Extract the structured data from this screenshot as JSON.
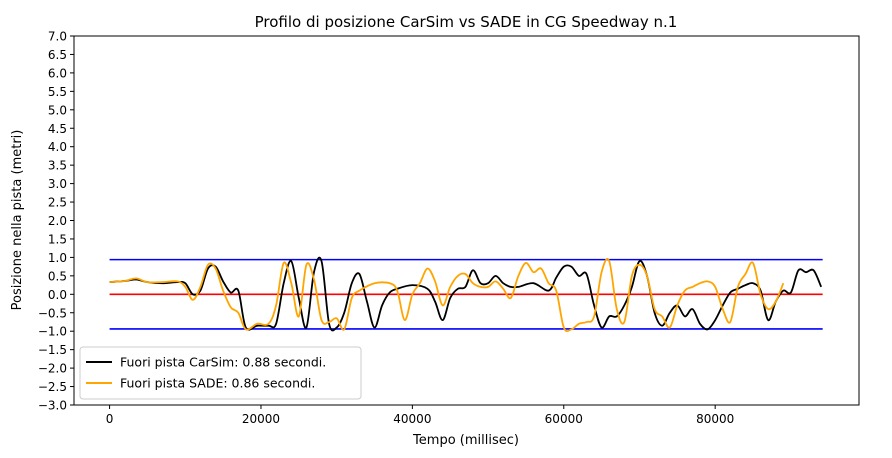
{
  "chart_data": {
    "type": "line",
    "title": "Profilo di posizione CarSim vs SADE in CG Speedway n.1",
    "xlabel": "Tempo (millisec)",
    "ylabel": "Posizione nella pista (metri)",
    "xlim": [
      -4700,
      99000
    ],
    "ylim": [
      -3.0,
      7.0
    ],
    "xticks": [
      0,
      20000,
      40000,
      60000,
      80000
    ],
    "xtick_labels": [
      "0",
      "20000",
      "40000",
      "60000",
      "80000"
    ],
    "yticks": [
      -3.0,
      -2.5,
      -2.0,
      -1.5,
      -1.0,
      -0.5,
      0.0,
      0.5,
      1.0,
      1.5,
      2.0,
      2.5,
      3.0,
      3.5,
      4.0,
      4.5,
      5.0,
      5.5,
      6.0,
      6.5,
      7.0
    ],
    "ytick_labels": [
      "−3.0",
      "−2.5",
      "−2.0",
      "−1.5",
      "−1.0",
      "−0.5",
      "0.0",
      "0.5",
      "1.0",
      "1.5",
      "2.0",
      "2.5",
      "3.0",
      "3.5",
      "4.0",
      "4.5",
      "5.0",
      "5.5",
      "6.0",
      "6.5",
      "7.0"
    ],
    "legend_position": "bottom-left",
    "reference_lines": [
      {
        "y": 0.94,
        "x": [
          0,
          94200
        ],
        "color": "#0000ff"
      },
      {
        "y": 0.0,
        "x": [
          0,
          94200
        ],
        "color": "#ff0000"
      },
      {
        "y": -0.94,
        "x": [
          0,
          94200
        ],
        "color": "#0000ff"
      }
    ],
    "series": [
      {
        "name": "Fuori pista CarSim: 0.88 secondi.",
        "color": "#000000",
        "x": [
          0,
          2000,
          3500,
          5000,
          7000,
          9000,
          10000,
          11000,
          12000,
          13000,
          14000,
          15000,
          16000,
          17000,
          18000,
          19500,
          21000,
          22000,
          23000,
          24000,
          25000,
          26000,
          27000,
          28000,
          29000,
          30000,
          31000,
          32000,
          33000,
          34000,
          35000,
          36000,
          37000,
          38000,
          40000,
          42000,
          43000,
          44000,
          45000,
          46000,
          47000,
          48000,
          49000,
          50000,
          51000,
          52000,
          53000,
          54000,
          56000,
          58000,
          59000,
          60000,
          61000,
          62000,
          63000,
          64000,
          65000,
          66000,
          67000,
          68000,
          69000,
          70000,
          71000,
          72000,
          73000,
          74000,
          75000,
          76000,
          77000,
          78000,
          79000,
          80000,
          81000,
          82000,
          83000,
          84000,
          85000,
          86000,
          87000,
          88000,
          89000,
          90000,
          91000,
          92000,
          93000,
          94000
        ],
        "y": [
          0.33,
          0.36,
          0.4,
          0.33,
          0.3,
          0.33,
          0.3,
          0.0,
          0.1,
          0.7,
          0.75,
          0.35,
          0.05,
          0.1,
          -0.9,
          -0.85,
          -0.85,
          -0.8,
          0.3,
          0.9,
          -0.1,
          -0.9,
          0.6,
          0.9,
          -0.8,
          -0.9,
          -0.5,
          0.3,
          0.55,
          -0.2,
          -0.9,
          -0.3,
          0.05,
          0.15,
          0.25,
          0.15,
          -0.2,
          -0.7,
          -0.1,
          0.15,
          0.2,
          0.65,
          0.3,
          0.3,
          0.5,
          0.3,
          0.2,
          0.2,
          0.3,
          0.1,
          0.45,
          0.75,
          0.75,
          0.5,
          0.55,
          -0.3,
          -0.9,
          -0.6,
          -0.6,
          -0.3,
          0.2,
          0.9,
          0.5,
          -0.5,
          -0.85,
          -0.5,
          -0.3,
          -0.6,
          -0.4,
          -0.8,
          -0.95,
          -0.7,
          -0.3,
          0.05,
          0.15,
          0.25,
          0.3,
          0.1,
          -0.7,
          -0.2,
          0.1,
          0.05,
          0.65,
          0.6,
          0.65,
          0.2
        ]
      },
      {
        "name": "Fuori pista SADE: 0.86 secondi.",
        "color": "#ffa500",
        "x": [
          0,
          2000,
          3500,
          5000,
          7000,
          9000,
          10000,
          11000,
          12000,
          13000,
          14000,
          15000,
          16000,
          17000,
          18000,
          19500,
          21000,
          22000,
          23000,
          24000,
          25000,
          26000,
          27000,
          28000,
          29000,
          30000,
          31000,
          32000,
          33000,
          35000,
          37000,
          38000,
          39000,
          40000,
          41000,
          42000,
          43000,
          44000,
          45000,
          46000,
          47000,
          48000,
          49000,
          50000,
          51000,
          52000,
          53000,
          54000,
          55000,
          56000,
          57000,
          58000,
          59000,
          60000,
          61000,
          62000,
          63000,
          64000,
          65000,
          66000,
          67000,
          68000,
          69000,
          70000,
          71000,
          72000,
          73000,
          74000,
          75000,
          76000,
          77000,
          78000,
          79000,
          80000,
          81000,
          82000,
          83000,
          84000,
          85000,
          86000,
          87000,
          88000,
          89000
        ],
        "y": [
          0.33,
          0.36,
          0.43,
          0.33,
          0.33,
          0.35,
          0.2,
          -0.15,
          0.2,
          0.8,
          0.7,
          0.1,
          -0.35,
          -0.5,
          -0.95,
          -0.8,
          -0.8,
          -0.3,
          0.85,
          0.3,
          -0.6,
          0.8,
          0.4,
          -0.7,
          -0.75,
          -0.65,
          -0.95,
          -0.1,
          0.1,
          0.3,
          0.3,
          0.1,
          -0.7,
          0.0,
          0.3,
          0.7,
          0.35,
          -0.3,
          0.2,
          0.5,
          0.55,
          0.3,
          0.2,
          0.2,
          0.35,
          0.15,
          -0.1,
          0.5,
          0.85,
          0.6,
          0.7,
          0.3,
          0.1,
          -0.9,
          -0.95,
          -0.8,
          -0.75,
          -0.6,
          0.6,
          0.9,
          -0.4,
          -0.75,
          0.5,
          0.8,
          0.5,
          -0.4,
          -0.6,
          -0.9,
          -0.3,
          0.1,
          0.2,
          0.3,
          0.35,
          0.2,
          -0.4,
          -0.75,
          0.2,
          0.55,
          0.85,
          0.0,
          -0.4,
          -0.2,
          0.3
        ]
      }
    ]
  }
}
